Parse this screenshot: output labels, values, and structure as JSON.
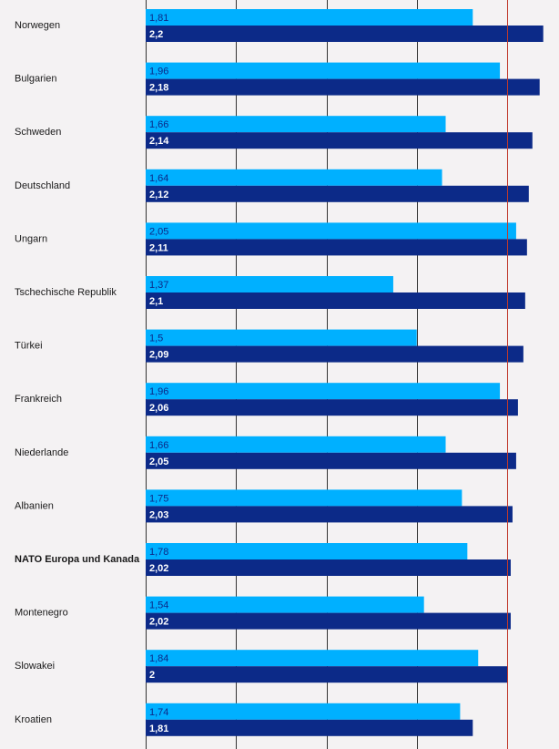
{
  "chart_data": {
    "type": "bar",
    "orientation": "horizontal",
    "categories": [
      "Norwegen",
      "Bulgarien",
      "Schweden",
      "Deutschland",
      "Ungarn",
      "Tschechische Republik",
      "Türkei",
      "Frankreich",
      "Niederlande",
      "Albanien",
      "NATO Europa und Kanada",
      "Montenegro",
      "Slowakei",
      "Kroatien"
    ],
    "series": [
      {
        "values": [
          1.81,
          1.96,
          1.66,
          1.64,
          2.05,
          1.37,
          1.5,
          1.96,
          1.66,
          1.75,
          1.78,
          1.54,
          1.84,
          1.74
        ],
        "labels": [
          "1,81",
          "1,96",
          "1,66",
          "1,64",
          "2,05",
          "1,37",
          "1,5",
          "1,96",
          "1,66",
          "1,75",
          "1,78",
          "1,54",
          "1,84",
          "1,74"
        ],
        "color": "#00b0ff"
      },
      {
        "values": [
          2.2,
          2.18,
          2.14,
          2.12,
          2.11,
          2.1,
          2.09,
          2.06,
          2.05,
          2.03,
          2.02,
          2.02,
          2.0,
          1.81
        ],
        "labels": [
          "2,2",
          "2,18",
          "2,14",
          "2,12",
          "2,11",
          "2,1",
          "2,09",
          "2,06",
          "2,05",
          "2,03",
          "2,02",
          "2,02",
          "2",
          "1,81"
        ],
        "color": "#0c2a88"
      }
    ],
    "highlight_category": "NATO Europa und Kanada",
    "xlim": [
      0,
      2.2
    ],
    "gridlines": [
      0,
      0.5,
      1,
      1.5
    ],
    "reference_line": 2,
    "reference_line_color": "#c0392b",
    "grid": true
  }
}
